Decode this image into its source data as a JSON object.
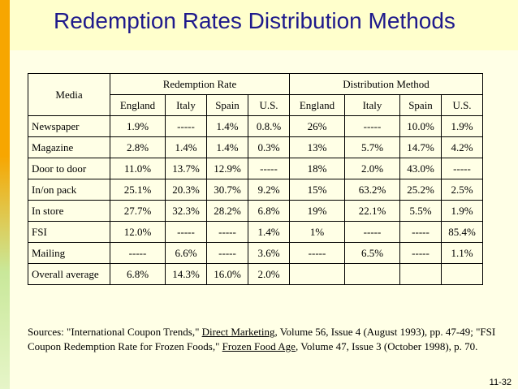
{
  "slide": {
    "title": "Redemption Rates Distribution Methods",
    "page_number": "11-32"
  },
  "table": {
    "media_header": "Media",
    "group_redemption": "Redemption Rate",
    "group_distribution": "Distribution Method",
    "countries": [
      "England",
      "Italy",
      "Spain",
      "U.S.",
      "England",
      "Italy",
      "Spain",
      "U.S."
    ],
    "rows": [
      {
        "media": "Newspaper",
        "values": [
          "1.9%",
          "-----",
          "1.4%",
          "0.8.%",
          "26%",
          "-----",
          "10.0%",
          "1.9%"
        ]
      },
      {
        "media": "Magazine",
        "values": [
          "2.8%",
          "1.4%",
          "1.4%",
          "0.3%",
          "13%",
          "5.7%",
          "14.7%",
          "4.2%"
        ]
      },
      {
        "media": "Door to door",
        "values": [
          "11.0%",
          "13.7%",
          "12.9%",
          "-----",
          "18%",
          "2.0%",
          "43.0%",
          "-----"
        ]
      },
      {
        "media": "In/on pack",
        "values": [
          "25.1%",
          "20.3%",
          "30.7%",
          "9.2%",
          "15%",
          "63.2%",
          "25.2%",
          "2.5%"
        ]
      },
      {
        "media": "In store",
        "values": [
          "27.7%",
          "32.3%",
          "28.2%",
          "6.8%",
          "19%",
          "22.1%",
          "5.5%",
          "1.9%"
        ]
      },
      {
        "media": "FSI",
        "values": [
          "12.0%",
          "-----",
          "-----",
          "1.4%",
          "1%",
          "-----",
          "-----",
          "85.4%"
        ]
      },
      {
        "media": "Mailing",
        "values": [
          "-----",
          "6.6%",
          "-----",
          "3.6%",
          "-----",
          "6.5%",
          "-----",
          "1.1%"
        ]
      },
      {
        "media": "Overall average",
        "values": [
          "6.8%",
          "14.3%",
          "16.0%",
          "2.0%",
          "",
          "",
          "",
          ""
        ]
      }
    ]
  },
  "sources": {
    "part1": "Sources: \"International Coupon Trends,\" ",
    "link1": "Direct Marketing",
    "part2": ", Volume 56, Issue 4 (August 1993), pp. 47-49; \"FSI Coupon Redemption Rate for Frozen Foods,\" ",
    "link2": "Frozen Food Age",
    "part3": ", Volume 47, Issue 3 (October 1998), p. 70."
  }
}
